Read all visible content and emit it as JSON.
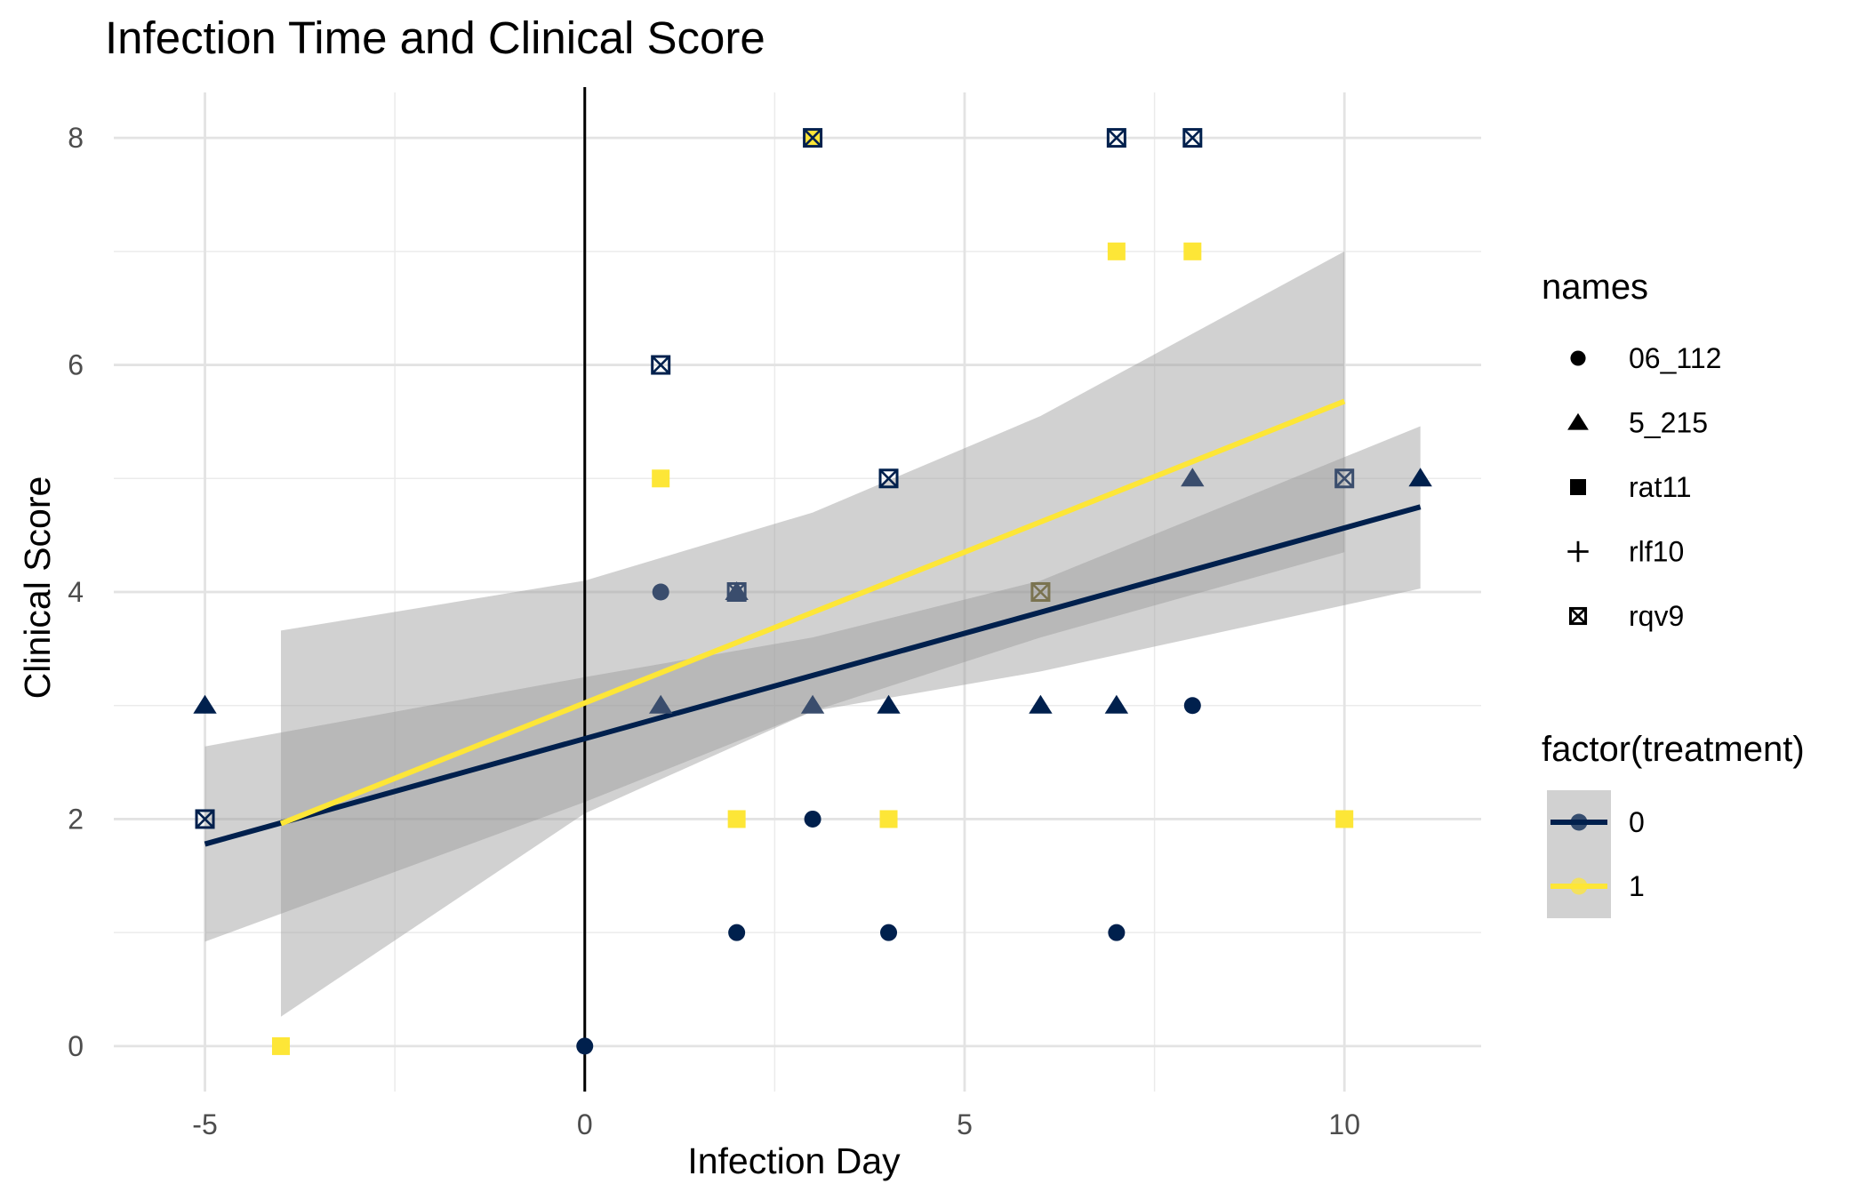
{
  "chart_data": {
    "type": "scatter",
    "title": "Infection Time and Clinical Score",
    "xlabel": "Infection Day",
    "ylabel": "Clinical Score",
    "xlim": [
      -6.2,
      11.8
    ],
    "ylim": [
      -0.4,
      8.4
    ],
    "x_ticks": [
      -5,
      0,
      5,
      10
    ],
    "x_tick_labels": [
      "-5",
      "0",
      "5",
      "10"
    ],
    "y_ticks": [
      0,
      2,
      4,
      6,
      8
    ],
    "y_tick_labels": [
      "0",
      "2",
      "4",
      "6",
      "8"
    ],
    "grid": true,
    "vertical_reference_line": {
      "x": 0,
      "color": "#000000"
    },
    "legend_placement": "right",
    "colors": {
      "treatment_0": "#00204d",
      "treatment_0_light": "#3a4d6d",
      "treatment_1": "#fde637",
      "ribbon": "#999999"
    },
    "shape_legend": {
      "title": "names",
      "items": [
        {
          "label": "06_112",
          "shape": "circle"
        },
        {
          "label": "5_215",
          "shape": "triangle"
        },
        {
          "label": "rat11",
          "shape": "square"
        },
        {
          "label": "rlf10",
          "shape": "plus"
        },
        {
          "label": "rqv9",
          "shape": "boxed-x"
        }
      ]
    },
    "color_legend": {
      "title": "factor(treatment)",
      "items": [
        {
          "label": "0",
          "color": "#00204d"
        },
        {
          "label": "1",
          "color": "#fde637"
        }
      ]
    },
    "points": [
      {
        "x": 0,
        "y": 0,
        "shape": "circle",
        "color": "#00204d"
      },
      {
        "x": 1,
        "y": 4,
        "shape": "circle",
        "color": "#3a4d6d"
      },
      {
        "x": 2,
        "y": 1,
        "shape": "circle",
        "color": "#00204d"
      },
      {
        "x": 3,
        "y": 2,
        "shape": "circle",
        "color": "#00204d"
      },
      {
        "x": 4,
        "y": 1,
        "shape": "circle",
        "color": "#00204d"
      },
      {
        "x": 7,
        "y": 1,
        "shape": "circle",
        "color": "#00204d"
      },
      {
        "x": 8,
        "y": 3,
        "shape": "circle",
        "color": "#00204d"
      },
      {
        "x": -5,
        "y": 3,
        "shape": "triangle",
        "color": "#00204d"
      },
      {
        "x": 1,
        "y": 3,
        "shape": "triangle",
        "color": "#3a4d6d"
      },
      {
        "x": 2,
        "y": 4,
        "shape": "triangle",
        "color": "#3a4d6d"
      },
      {
        "x": 3,
        "y": 3,
        "shape": "triangle",
        "color": "#3a4d6d"
      },
      {
        "x": 4,
        "y": 3,
        "shape": "triangle",
        "color": "#00204d"
      },
      {
        "x": 6,
        "y": 3,
        "shape": "triangle",
        "color": "#00204d"
      },
      {
        "x": 7,
        "y": 3,
        "shape": "triangle",
        "color": "#00204d"
      },
      {
        "x": 8,
        "y": 5,
        "shape": "triangle",
        "color": "#3a4d6d"
      },
      {
        "x": 11,
        "y": 5,
        "shape": "triangle",
        "color": "#00204d"
      },
      {
        "x": -4,
        "y": 0,
        "shape": "square",
        "color": "#fde637"
      },
      {
        "x": 1,
        "y": 5,
        "shape": "square",
        "color": "#fde637"
      },
      {
        "x": 2,
        "y": 2,
        "shape": "square",
        "color": "#fde637"
      },
      {
        "x": 3,
        "y": 8,
        "shape": "square",
        "color": "#fde637"
      },
      {
        "x": 4,
        "y": 2,
        "shape": "square",
        "color": "#fde637"
      },
      {
        "x": 7,
        "y": 7,
        "shape": "square",
        "color": "#fde637"
      },
      {
        "x": 8,
        "y": 7,
        "shape": "square",
        "color": "#fde637"
      },
      {
        "x": 10,
        "y": 2,
        "shape": "square",
        "color": "#fde637"
      },
      {
        "x": -5,
        "y": 2,
        "shape": "boxed-x",
        "color": "#00204d"
      },
      {
        "x": 1,
        "y": 6,
        "shape": "boxed-x",
        "color": "#00204d"
      },
      {
        "x": 2,
        "y": 4,
        "shape": "boxed-x",
        "color": "#3a4d6d"
      },
      {
        "x": 3,
        "y": 8,
        "shape": "boxed-x",
        "color": "#00204d"
      },
      {
        "x": 4,
        "y": 5,
        "shape": "boxed-x",
        "color": "#00204d"
      },
      {
        "x": 6,
        "y": 4,
        "shape": "boxed-x",
        "color": "#7a7350"
      },
      {
        "x": 7,
        "y": 8,
        "shape": "boxed-x",
        "color": "#00204d"
      },
      {
        "x": 8,
        "y": 8,
        "shape": "boxed-x",
        "color": "#00204d"
      },
      {
        "x": 10,
        "y": 5,
        "shape": "boxed-x",
        "color": "#3a4d6d"
      }
    ],
    "series": [
      {
        "name": "0",
        "type": "line",
        "color": "#00204d",
        "line": [
          [
            -5,
            1.78
          ],
          [
            11,
            4.75
          ]
        ],
        "ribbon": [
          [
            -5,
            0.92,
            2.64
          ],
          [
            0,
            2.15,
            3.25
          ],
          [
            3,
            2.95,
            3.6
          ],
          [
            6,
            3.3,
            4.1
          ],
          [
            11,
            4.03,
            5.46
          ]
        ]
      },
      {
        "name": "1",
        "type": "line",
        "color": "#fde637",
        "line": [
          [
            -4,
            1.96
          ],
          [
            10,
            5.68
          ]
        ],
        "ribbon": [
          [
            -4,
            0.26,
            3.66
          ],
          [
            0,
            2.05,
            4.1
          ],
          [
            3,
            2.95,
            4.7
          ],
          [
            6,
            3.6,
            5.55
          ],
          [
            10,
            4.35,
            7.0
          ]
        ]
      }
    ]
  }
}
